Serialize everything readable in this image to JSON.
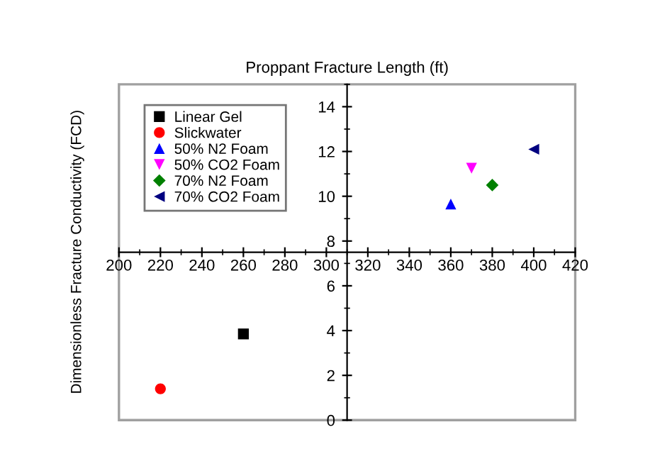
{
  "chart_data": {
    "type": "scatter",
    "xlabel": "Proppant Fracture Length (ft)",
    "ylabel": "Dimensionless Fracture Conductivity (FCD)",
    "xlim": [
      200,
      420
    ],
    "xticks": [
      200,
      220,
      240,
      260,
      280,
      300,
      320,
      340,
      360,
      380,
      400,
      420
    ],
    "ylim": [
      0,
      15
    ],
    "yticks": [
      0,
      2,
      4,
      6,
      8,
      10,
      12,
      14
    ],
    "grid": false,
    "legend": "top left",
    "series": [
      {
        "name": "Linear Gel",
        "color": "#000000",
        "marker": "square",
        "x": [
          260
        ],
        "values": [
          3.85
        ]
      },
      {
        "name": "Slickwater",
        "color": "#ff0000",
        "marker": "circle",
        "x": [
          220
        ],
        "values": [
          1.4
        ]
      },
      {
        "name": "50% N2 Foam",
        "color": "#0000ff",
        "marker": "triangle",
        "x": [
          360
        ],
        "values": [
          9.65
        ]
      },
      {
        "name": "50% CO2 Foam",
        "color": "#ff00ff",
        "marker": "triangle-down",
        "x": [
          370
        ],
        "values": [
          11.25
        ]
      },
      {
        "name": "70% N2 Foam",
        "color": "#008000",
        "marker": "diamond",
        "x": [
          380
        ],
        "values": [
          10.5
        ]
      },
      {
        "name": "70% CO2 Foam",
        "color": "#000080",
        "marker": "triangle-left",
        "x": [
          400
        ],
        "values": [
          12.1
        ]
      }
    ]
  }
}
